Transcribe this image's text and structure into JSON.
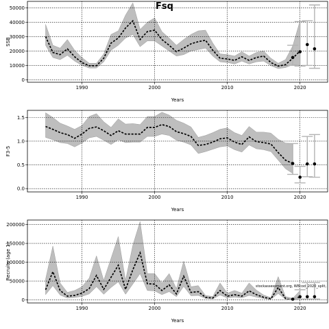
{
  "title": "Fsq",
  "credit": "stockassessment.org, WBcod_2020_split,",
  "chart_data": [
    {
      "type": "line",
      "ylabel": "SSB",
      "xlabel": "Years",
      "xlim": [
        1982.5,
        2023.8
      ],
      "ylim": [
        -1700,
        54500
      ],
      "xticks": [
        1990,
        2000,
        2010,
        2020
      ],
      "yticks": [
        0,
        10000,
        20000,
        30000,
        40000,
        50000
      ],
      "ytick_labels": [
        "0",
        "10000",
        "20000",
        "30000",
        "40000",
        "50000"
      ],
      "grid": true,
      "x": [
        1985,
        1986,
        1987,
        1988,
        1989,
        1990,
        1991,
        1992,
        1993,
        1994,
        1995,
        1996,
        1997,
        1998,
        1999,
        2000,
        2001,
        2002,
        2003,
        2004,
        2005,
        2006,
        2007,
        2008,
        2009,
        2010,
        2011,
        2012,
        2013,
        2014,
        2015,
        2016,
        2017,
        2018,
        2019,
        2020
      ],
      "series": [
        {
          "values": [
            30000,
            19000,
            17500,
            21500,
            16000,
            12000,
            9800,
            9800,
            15000,
            25500,
            29000,
            36000,
            41000,
            28000,
            33500,
            34500,
            28000,
            24000,
            19500,
            22000,
            25000,
            26500,
            27500,
            20500,
            15000,
            14500,
            13500,
            16000,
            13500,
            15500,
            16500,
            12000,
            9500,
            10500,
            15000,
            20000
          ]
        },
        {
          "values": [
            38500,
            24000,
            22000,
            28000,
            20500,
            15500,
            11500,
            11500,
            18000,
            31500,
            34000,
            45000,
            53500,
            35000,
            40000,
            43000,
            33500,
            29000,
            24000,
            28000,
            31500,
            34000,
            34500,
            25500,
            18000,
            17500,
            16500,
            19500,
            16500,
            19000,
            20000,
            15000,
            11500,
            14000,
            23500,
            41000
          ],
          "band": "upper"
        },
        {
          "values": [
            24000,
            15500,
            14000,
            17000,
            13000,
            10000,
            8200,
            8200,
            12500,
            20500,
            24000,
            29000,
            31500,
            23000,
            27000,
            27000,
            23500,
            20000,
            16500,
            17500,
            20000,
            21000,
            22000,
            16500,
            12500,
            12000,
            11000,
            13000,
            11000,
            12500,
            13000,
            9800,
            7800,
            8500,
            10500,
            10000
          ],
          "band": "lower"
        }
      ],
      "forecast": [
        {
          "x": 2019,
          "value": 15500,
          "low": 10000,
          "high": 24000
        },
        {
          "x": 2020,
          "value": 19500,
          "low": 9500,
          "high": 40500
        },
        {
          "x": 2021,
          "value": 24500,
          "low": 10000,
          "high": 41000
        },
        {
          "x": 2022,
          "value": 21500,
          "low": 8000,
          "high": 52000
        }
      ]
    },
    {
      "type": "line",
      "ylabel": "F3-5",
      "xlabel": "Years",
      "xlim": [
        1982.5,
        2023.8
      ],
      "ylim": [
        -0.07,
        1.65
      ],
      "xticks": [
        1990,
        2000,
        2010,
        2020
      ],
      "yticks": [
        0.0,
        0.5,
        1.0,
        1.5
      ],
      "ytick_labels": [
        "0.0",
        "0.5",
        "1.0",
        "1.5"
      ],
      "grid": true,
      "x": [
        1985,
        1986,
        1987,
        1988,
        1989,
        1990,
        1991,
        1992,
        1993,
        1994,
        1995,
        1996,
        1997,
        1998,
        1999,
        2000,
        2001,
        2002,
        2003,
        2004,
        2005,
        2006,
        2007,
        2008,
        2009,
        2010,
        2011,
        2012,
        2013,
        2014,
        2015,
        2016,
        2017,
        2018,
        2019
      ],
      "series": [
        {
          "values": [
            1.31,
            1.25,
            1.18,
            1.14,
            1.06,
            1.15,
            1.27,
            1.3,
            1.22,
            1.12,
            1.22,
            1.15,
            1.15,
            1.15,
            1.29,
            1.29,
            1.35,
            1.31,
            1.2,
            1.16,
            1.1,
            0.91,
            0.93,
            0.98,
            1.05,
            1.07,
            0.98,
            0.93,
            1.09,
            0.99,
            0.97,
            0.94,
            0.76,
            0.6,
            0.53
          ]
        },
        {
          "values": [
            1.6,
            1.5,
            1.38,
            1.32,
            1.25,
            1.33,
            1.52,
            1.58,
            1.41,
            1.29,
            1.47,
            1.36,
            1.37,
            1.35,
            1.52,
            1.52,
            1.61,
            1.55,
            1.44,
            1.38,
            1.3,
            1.08,
            1.12,
            1.18,
            1.25,
            1.28,
            1.18,
            1.12,
            1.31,
            1.19,
            1.19,
            1.17,
            1.04,
            0.96,
            0.95
          ],
          "band": "upper"
        },
        {
          "values": [
            1.08,
            1.03,
            0.97,
            0.95,
            0.88,
            0.96,
            1.07,
            1.1,
            1.02,
            0.93,
            1.03,
            0.97,
            0.98,
            0.98,
            1.1,
            1.1,
            1.15,
            1.12,
            1.02,
            0.98,
            0.92,
            0.74,
            0.78,
            0.83,
            0.88,
            0.9,
            0.82,
            0.77,
            0.92,
            0.84,
            0.82,
            0.78,
            0.6,
            0.42,
            0.32
          ],
          "band": "lower"
        }
      ],
      "forecast": [
        {
          "x": 2019,
          "value": 0.53,
          "low": 0.3,
          "high": 0.95
        },
        {
          "x": 2020,
          "value": 0.24,
          "low": 0.12,
          "high": 0.47
        },
        {
          "x": 2021,
          "value": 0.52,
          "low": 0.25,
          "high": 1.1
        },
        {
          "x": 2022,
          "value": 0.52,
          "low": 0.24,
          "high": 1.14
        }
      ]
    },
    {
      "type": "line",
      "ylabel": "Recruits (age 1)",
      "xlabel": "Years",
      "xlim": [
        1982.5,
        2023.8
      ],
      "ylim": [
        -8000,
        212000
      ],
      "xticks": [
        1990,
        2000,
        2010,
        2020
      ],
      "yticks": [
        0,
        50000,
        100000,
        150000,
        200000
      ],
      "ytick_labels": [
        "0",
        "50000",
        "100000",
        "150000",
        "200000"
      ],
      "grid": true,
      "x": [
        1985,
        1986,
        1987,
        1988,
        1989,
        1990,
        1991,
        1992,
        1993,
        1994,
        1995,
        1996,
        1997,
        1998,
        1999,
        2000,
        2001,
        2002,
        2003,
        2004,
        2005,
        2006,
        2007,
        2008,
        2009,
        2010,
        2011,
        2012,
        2013,
        2014,
        2015,
        2016,
        2017,
        2018,
        2019,
        2020
      ],
      "series": [
        {
          "values": [
            27000,
            75000,
            25000,
            10000,
            12000,
            18000,
            30000,
            65000,
            28000,
            60000,
            92000,
            28000,
            80000,
            125000,
            43000,
            42000,
            25000,
            40000,
            16000,
            63000,
            20000,
            22000,
            7000,
            5000,
            25000,
            10000,
            14000,
            10000,
            24000,
            14000,
            7000,
            3000,
            33000,
            4000,
            2000,
            8000
          ]
        },
        {
          "values": [
            55000,
            143000,
            45000,
            20000,
            25000,
            35000,
            58000,
            117000,
            52000,
            110000,
            168000,
            52000,
            145000,
            208000,
            70000,
            70000,
            45000,
            70000,
            30000,
            103000,
            35000,
            38000,
            12000,
            9000,
            45000,
            18000,
            25000,
            18000,
            45000,
            26000,
            13000,
            6000,
            62000,
            9000,
            4000,
            25000
          ],
          "band": "upper"
        },
        {
          "values": [
            14000,
            38000,
            13000,
            5000,
            6500,
            9500,
            16000,
            35000,
            15000,
            33000,
            48000,
            15000,
            42000,
            70000,
            25000,
            24000,
            14000,
            22000,
            8500,
            36000,
            11000,
            12000,
            4000,
            2700,
            13000,
            5500,
            7500,
            5500,
            12000,
            7500,
            3700,
            1500,
            17000,
            2000,
            800,
            2500
          ],
          "band": "lower"
        }
      ],
      "forecast": [
        {
          "x": 2019,
          "value": 2000,
          "low": 800,
          "high": 4500
        },
        {
          "x": 2020,
          "value": 8500,
          "low": 2500,
          "high": 27000
        },
        {
          "x": 2021,
          "value": 8500,
          "low": 2500,
          "high": 46000
        },
        {
          "x": 2022,
          "value": 8500,
          "low": 2500,
          "high": 46000
        }
      ]
    }
  ],
  "colors": {
    "band": "#bebebe",
    "band_edge": "#9a9a9a",
    "line": "#000000",
    "forecast_bar": "#b3b3b3",
    "grid": "#000000"
  }
}
